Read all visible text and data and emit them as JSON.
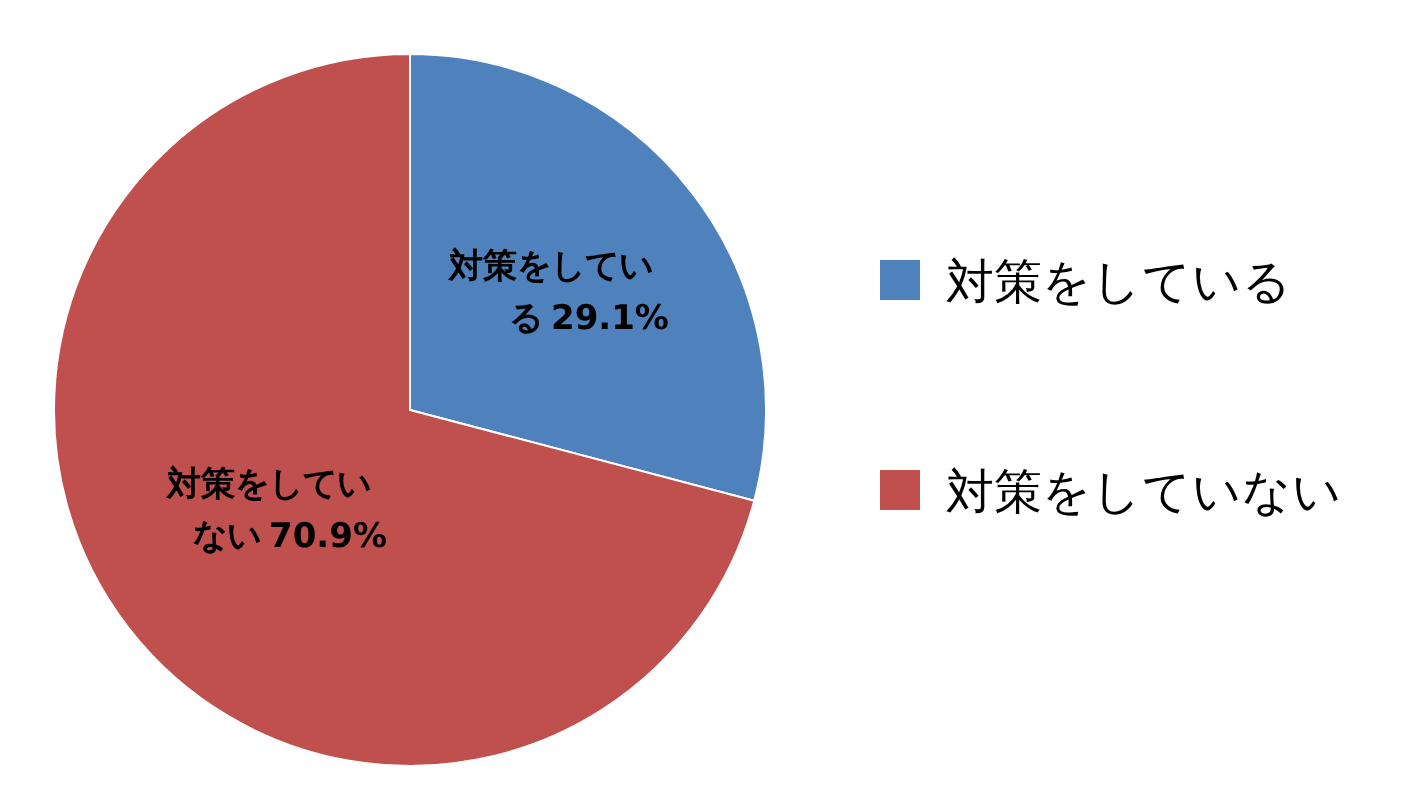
{
  "chart_data": {
    "type": "pie",
    "categories": [
      "対策をしている",
      "対策をしていない"
    ],
    "values": [
      29.1,
      70.9
    ],
    "value_labels": [
      "29.1%",
      "70.9%"
    ],
    "colors": [
      "#4f81bd",
      "#c0504d"
    ],
    "legend": "right"
  }
}
